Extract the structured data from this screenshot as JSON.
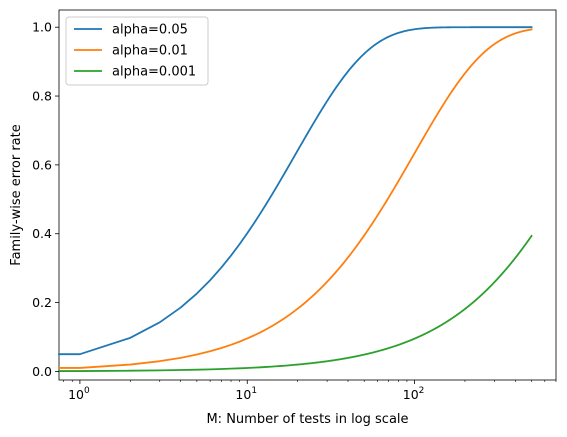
{
  "chart_data": {
    "type": "line",
    "xlabel": "M: Number of tests in log scale",
    "ylabel": "Family-wise error rate",
    "xscale": "log",
    "xlim": [
      0.75,
      700
    ],
    "ylim": [
      -0.025,
      1.05
    ],
    "grid": false,
    "legend_position": "top-left",
    "x_ticks": [
      {
        "value": 1,
        "base": "10",
        "exp": "0"
      },
      {
        "value": 10,
        "base": "10",
        "exp": "1"
      },
      {
        "value": 100,
        "base": "10",
        "exp": "2"
      }
    ],
    "y_ticks": [
      {
        "value": 0.0,
        "label": "0.0"
      },
      {
        "value": 0.2,
        "label": "0.2"
      },
      {
        "value": 0.4,
        "label": "0.4"
      },
      {
        "value": 0.6,
        "label": "0.6"
      },
      {
        "value": 0.8,
        "label": "0.8"
      },
      {
        "value": 1.0,
        "label": "1.0"
      }
    ],
    "x_range": [
      0,
      500
    ],
    "series": [
      {
        "name": "alpha=0.05",
        "alpha": 0.05,
        "color": "#1f77b4"
      },
      {
        "name": "alpha=0.01",
        "alpha": 0.01,
        "color": "#ff7f0e"
      },
      {
        "name": "alpha=0.001",
        "alpha": 0.001,
        "color": "#2ca02c"
      }
    ]
  }
}
